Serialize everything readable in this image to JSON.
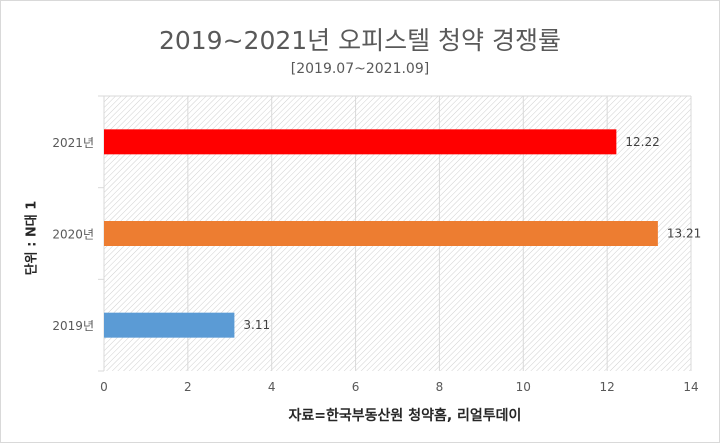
{
  "chart_data": {
    "type": "bar",
    "orientation": "horizontal",
    "title": "2019~2021년 오피스텔 청약 경쟁률",
    "subtitle": "[2019.07~2021.09]",
    "ylabel": "단위 : N대 1",
    "xlabel": "자료=한국부동산원 청약홈, 리얼투데이",
    "categories": [
      "2021년",
      "2020년",
      "2019년"
    ],
    "values": [
      12.22,
      13.21,
      3.11
    ],
    "data_labels": [
      "12.22",
      "13.21",
      "3.11"
    ],
    "colors": [
      "#ff0000",
      "#ed7d31",
      "#5b9bd5"
    ],
    "xlim": [
      0,
      14
    ],
    "xticks": [
      0,
      2,
      4,
      6,
      8,
      10,
      12,
      14
    ],
    "grid": true,
    "legend": "none"
  }
}
